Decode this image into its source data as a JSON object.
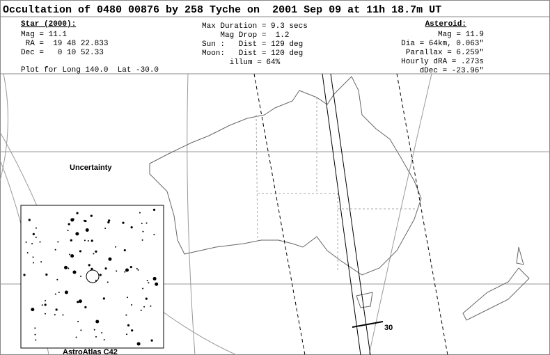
{
  "header": {
    "title": "Occultation of 0480 00876 by 258 Tyche on  2001 Sep 09 at 11h 18.7m UT",
    "star": {
      "heading": "Star (2000):",
      "lines": [
        "Mag = 11.1",
        " RA =  19 48 22.833",
        "Dec =   0 10 52.33"
      ]
    },
    "event": {
      "lines": [
        "Max Duration = 9.3 secs",
        "    Mag Drop =  1.2",
        "Sun :   Dist = 129 deg",
        "Moon:   Dist = 120 deg",
        "      illum = 64%"
      ]
    },
    "asteroid": {
      "heading": "Asteroid:",
      "lines": [
        "Mag = 11.9",
        "Dia = 64km, 0.063\"",
        "Parallax = 6.259\"",
        "Hourly dRA = .273s",
        "dDec = -23.96\""
      ]
    },
    "plot_for": "Plot for Long 140.0  Lat -30.0"
  },
  "map": {
    "uncertainty_label": "Uncertainty",
    "time_label": "30",
    "inset_label": "AstroAtlas C42"
  }
}
